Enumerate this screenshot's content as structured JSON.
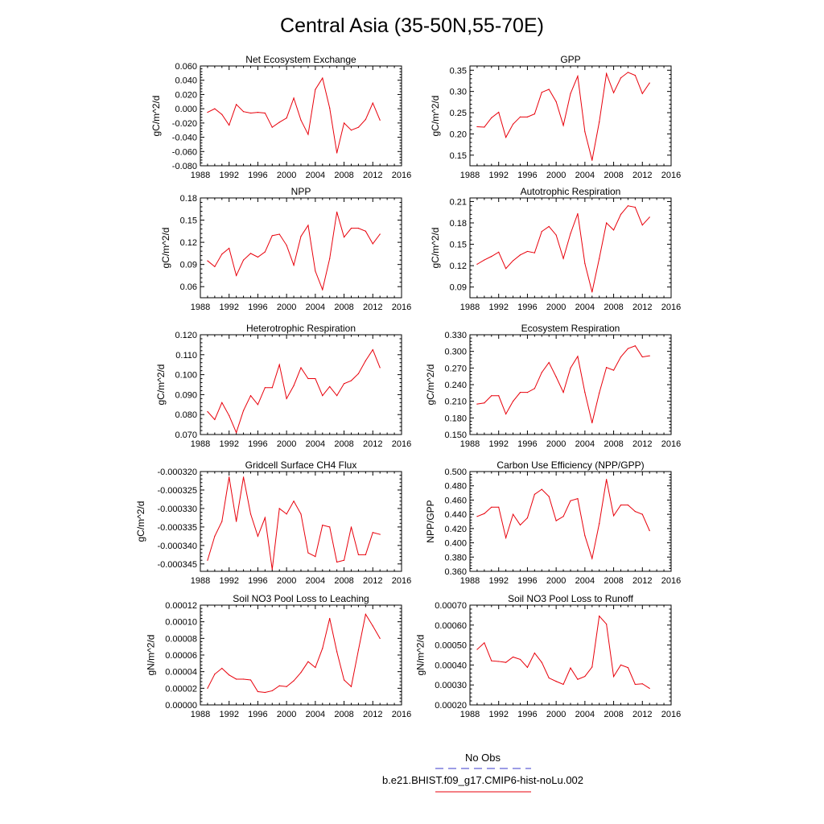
{
  "figure": {
    "title": "Central Asia (35-50N,55-70E)",
    "legend": {
      "obs_label": "No Obs",
      "obs_color": "#3a3acc",
      "model_label": "b.e21.BHIST.f09_g17.CMIP6-hist-noLu.002",
      "model_color": "#e8000b"
    },
    "line_color": "#e8000b"
  },
  "chart_data": [
    {
      "type": "line",
      "title": "Net Ecosystem Exchange",
      "ylabel": "gC/m^2/d",
      "xlim": [
        1988,
        2016
      ],
      "xticks": [
        1988,
        1992,
        1996,
        2000,
        2004,
        2008,
        2012,
        2016
      ],
      "ylim": [
        -0.08,
        0.06
      ],
      "yticks": [
        -0.08,
        -0.06,
        -0.04,
        -0.02,
        0.0,
        0.02,
        0.04,
        0.06
      ],
      "ytick_labels": [
        "-0.080",
        "-0.060",
        "-0.040",
        "-0.020",
        "0.000",
        "0.020",
        "0.040",
        "0.060"
      ],
      "x": [
        1989,
        1990,
        1991,
        1992,
        1993,
        1994,
        1995,
        1996,
        1997,
        1998,
        1999,
        2000,
        2001,
        2002,
        2003,
        2004,
        2005,
        2006,
        2007,
        2008,
        2009,
        2010,
        2011,
        2012,
        2013
      ],
      "values": [
        -0.005,
        0.0,
        -0.008,
        -0.023,
        0.006,
        -0.004,
        -0.006,
        -0.005,
        -0.006,
        -0.026,
        -0.019,
        -0.013,
        0.015,
        -0.016,
        -0.036,
        0.027,
        0.043,
        0.001,
        -0.062,
        -0.02,
        -0.03,
        -0.026,
        -0.015,
        0.008,
        -0.016
      ]
    },
    {
      "type": "line",
      "title": "GPP",
      "ylabel": "gC/m^2/d",
      "xlim": [
        1988,
        2016
      ],
      "xticks": [
        1988,
        1992,
        1996,
        2000,
        2004,
        2008,
        2012,
        2016
      ],
      "ylim": [
        0.125,
        0.36
      ],
      "yticks": [
        0.15,
        0.2,
        0.25,
        0.3,
        0.35
      ],
      "ytick_labels": [
        "0.15",
        "0.20",
        "0.25",
        "0.30",
        "0.35"
      ],
      "x": [
        1989,
        1990,
        1991,
        1992,
        1993,
        1994,
        1995,
        1996,
        1997,
        1998,
        1999,
        2000,
        2001,
        2002,
        2003,
        2004,
        2005,
        2006,
        2007,
        2008,
        2009,
        2010,
        2011,
        2012,
        2013
      ],
      "values": [
        0.217,
        0.216,
        0.238,
        0.251,
        0.192,
        0.223,
        0.24,
        0.24,
        0.247,
        0.298,
        0.305,
        0.276,
        0.22,
        0.295,
        0.336,
        0.205,
        0.138,
        0.228,
        0.342,
        0.297,
        0.332,
        0.345,
        0.338,
        0.295,
        0.32
      ]
    },
    {
      "type": "line",
      "title": "NPP",
      "ylabel": "gC/m^2/d",
      "xlim": [
        1988,
        2016
      ],
      "xticks": [
        1988,
        1992,
        1996,
        2000,
        2004,
        2008,
        2012,
        2016
      ],
      "ylim": [
        0.045,
        0.18
      ],
      "yticks": [
        0.06,
        0.09,
        0.12,
        0.15,
        0.18
      ],
      "ytick_labels": [
        "0.06",
        "0.09",
        "0.12",
        "0.15",
        "0.18"
      ],
      "x": [
        1989,
        1990,
        1991,
        1992,
        1993,
        1994,
        1995,
        1996,
        1997,
        1998,
        1999,
        2000,
        2001,
        2002,
        2003,
        2004,
        2005,
        2006,
        2007,
        2008,
        2009,
        2010,
        2011,
        2012,
        2013
      ],
      "values": [
        0.095,
        0.087,
        0.104,
        0.112,
        0.075,
        0.096,
        0.105,
        0.1,
        0.107,
        0.129,
        0.131,
        0.116,
        0.089,
        0.128,
        0.143,
        0.081,
        0.056,
        0.098,
        0.161,
        0.127,
        0.139,
        0.139,
        0.135,
        0.118,
        0.131
      ]
    },
    {
      "type": "line",
      "title": "Autotrophic Respiration",
      "ylabel": "gC/m^2/d",
      "xlim": [
        1988,
        2016
      ],
      "xticks": [
        1988,
        1992,
        1996,
        2000,
        2004,
        2008,
        2012,
        2016
      ],
      "ylim": [
        0.075,
        0.215
      ],
      "yticks": [
        0.09,
        0.12,
        0.15,
        0.18,
        0.21
      ],
      "ytick_labels": [
        "0.09",
        "0.12",
        "0.15",
        "0.18",
        "0.21"
      ],
      "x": [
        1989,
        1990,
        1991,
        1992,
        1993,
        1994,
        1995,
        1996,
        1997,
        1998,
        1999,
        2000,
        2001,
        2002,
        2003,
        2004,
        2005,
        2006,
        2007,
        2008,
        2009,
        2010,
        2011,
        2012,
        2013
      ],
      "values": [
        0.122,
        0.128,
        0.133,
        0.139,
        0.116,
        0.127,
        0.135,
        0.14,
        0.138,
        0.168,
        0.175,
        0.163,
        0.13,
        0.165,
        0.193,
        0.123,
        0.083,
        0.13,
        0.18,
        0.17,
        0.192,
        0.204,
        0.202,
        0.177,
        0.188
      ]
    },
    {
      "type": "line",
      "title": "Heterotrophic Respiration",
      "ylabel": "gC/m^2/d",
      "xlim": [
        1988,
        2016
      ],
      "xticks": [
        1988,
        1992,
        1996,
        2000,
        2004,
        2008,
        2012,
        2016
      ],
      "ylim": [
        0.07,
        0.12
      ],
      "yticks": [
        0.07,
        0.08,
        0.09,
        0.1,
        0.11,
        0.12
      ],
      "ytick_labels": [
        "0.070",
        "0.080",
        "0.090",
        "0.100",
        "0.110",
        "0.120"
      ],
      "x": [
        1989,
        1990,
        1991,
        1992,
        1993,
        1994,
        1995,
        1996,
        1997,
        1998,
        1999,
        2000,
        2001,
        2002,
        2003,
        2004,
        2005,
        2006,
        2007,
        2008,
        2009,
        2010,
        2011,
        2012,
        2013
      ],
      "values": [
        0.0815,
        0.0775,
        0.086,
        0.0795,
        0.071,
        0.082,
        0.0895,
        0.085,
        0.0935,
        0.0935,
        0.105,
        0.088,
        0.0945,
        0.1035,
        0.098,
        0.098,
        0.0895,
        0.094,
        0.0895,
        0.0955,
        0.097,
        0.1005,
        0.107,
        0.1125,
        0.1035
      ]
    },
    {
      "type": "line",
      "title": "Ecosystem Respiration",
      "ylabel": "gC/m^2/d",
      "xlim": [
        1988,
        2016
      ],
      "xticks": [
        1988,
        1992,
        1996,
        2000,
        2004,
        2008,
        2012,
        2016
      ],
      "ylim": [
        0.15,
        0.33
      ],
      "yticks": [
        0.15,
        0.18,
        0.21,
        0.24,
        0.27,
        0.3,
        0.33
      ],
      "ytick_labels": [
        "0.150",
        "0.180",
        "0.210",
        "0.240",
        "0.270",
        "0.300",
        "0.330"
      ],
      "x": [
        1989,
        1990,
        1991,
        1992,
        1993,
        1994,
        1995,
        1996,
        1997,
        1998,
        1999,
        2000,
        2001,
        2002,
        2003,
        2004,
        2005,
        2006,
        2007,
        2008,
        2009,
        2010,
        2011,
        2012,
        2013
      ],
      "values": [
        0.205,
        0.207,
        0.22,
        0.22,
        0.187,
        0.21,
        0.226,
        0.226,
        0.233,
        0.262,
        0.28,
        0.254,
        0.226,
        0.27,
        0.291,
        0.226,
        0.171,
        0.225,
        0.271,
        0.266,
        0.29,
        0.305,
        0.31,
        0.29,
        0.292
      ]
    },
    {
      "type": "line",
      "title": "Gridcell Surface CH4 Flux",
      "ylabel": "gC/m^2/d",
      "xlim": [
        1988,
        2016
      ],
      "xticks": [
        1988,
        1992,
        1996,
        2000,
        2004,
        2008,
        2012,
        2016
      ],
      "ylim": [
        -0.000347,
        -0.00032
      ],
      "yticks": [
        -0.000345,
        -0.00034,
        -0.000335,
        -0.00033,
        -0.000325,
        -0.00032
      ],
      "ytick_labels": [
        "-0.000345",
        "-0.000340",
        "-0.000335",
        "-0.000330",
        "-0.000325",
        "-0.000320"
      ],
      "x": [
        1989,
        1990,
        1991,
        1992,
        1993,
        1994,
        1995,
        1996,
        1997,
        1998,
        1999,
        2000,
        2001,
        2002,
        2003,
        2004,
        2005,
        2006,
        2007,
        2008,
        2009,
        2010,
        2011,
        2012,
        2013
      ],
      "values": [
        -0.000344,
        -0.0003375,
        -0.0003335,
        -0.0003215,
        -0.0003335,
        -0.0003215,
        -0.0003315,
        -0.0003375,
        -0.0003325,
        -0.0003465,
        -0.00033,
        -0.0003315,
        -0.000328,
        -0.0003315,
        -0.000342,
        -0.000343,
        -0.0003345,
        -0.000335,
        -0.0003445,
        -0.000344,
        -0.000335,
        -0.0003425,
        -0.0003425,
        -0.0003365,
        -0.000337
      ]
    },
    {
      "type": "line",
      "title": "Carbon Use Efficiency (NPP/GPP)",
      "ylabel": "NPP/GPP",
      "xlim": [
        1988,
        2016
      ],
      "xticks": [
        1988,
        1992,
        1996,
        2000,
        2004,
        2008,
        2012,
        2016
      ],
      "ylim": [
        0.36,
        0.5
      ],
      "yticks": [
        0.36,
        0.38,
        0.4,
        0.42,
        0.44,
        0.46,
        0.48,
        0.5
      ],
      "ytick_labels": [
        "0.360",
        "0.380",
        "0.400",
        "0.420",
        "0.440",
        "0.460",
        "0.480",
        "0.500"
      ],
      "x": [
        1989,
        1990,
        1991,
        1992,
        1993,
        1994,
        1995,
        1996,
        1997,
        1998,
        1999,
        2000,
        2001,
        2002,
        2003,
        2004,
        2005,
        2006,
        2007,
        2008,
        2009,
        2010,
        2011,
        2012,
        2013
      ],
      "values": [
        0.437,
        0.441,
        0.45,
        0.45,
        0.407,
        0.44,
        0.425,
        0.435,
        0.468,
        0.475,
        0.465,
        0.431,
        0.437,
        0.459,
        0.462,
        0.41,
        0.378,
        0.427,
        0.489,
        0.438,
        0.453,
        0.453,
        0.444,
        0.44,
        0.417
      ]
    },
    {
      "type": "line",
      "title": "Soil NO3 Pool Loss to Leaching",
      "ylabel": "gN/m^2/d",
      "xlim": [
        1988,
        2016
      ],
      "xticks": [
        1988,
        1992,
        1996,
        2000,
        2004,
        2008,
        2012,
        2016
      ],
      "ylim": [
        0.0,
        0.00012
      ],
      "yticks": [
        0.0,
        2e-05,
        4e-05,
        6e-05,
        8e-05,
        0.0001,
        0.00012
      ],
      "ytick_labels": [
        "0.00000",
        "0.00002",
        "0.00004",
        "0.00006",
        "0.00008",
        "0.00010",
        "0.00012"
      ],
      "x": [
        1989,
        1990,
        1991,
        1992,
        1993,
        1994,
        1995,
        1996,
        1997,
        1998,
        1999,
        2000,
        2001,
        2002,
        2003,
        2004,
        2005,
        2006,
        2007,
        2008,
        2009,
        2010,
        2011,
        2012,
        2013
      ],
      "values": [
        2e-05,
        3.7e-05,
        4.4e-05,
        3.6e-05,
        3.1e-05,
        3.1e-05,
        3e-05,
        1.6e-05,
        1.5e-05,
        1.7e-05,
        2.3e-05,
        2.2e-05,
        2.9e-05,
        3.9e-05,
        5.2e-05,
        4.5e-05,
        6.8e-05,
        0.000104,
        6.4e-05,
        3e-05,
        2.2e-05,
        6.6e-05,
        0.000109,
        9.5e-05,
        8e-05
      ]
    },
    {
      "type": "line",
      "title": "Soil NO3 Pool Loss to Runoff",
      "ylabel": "gN/m^2/d",
      "xlim": [
        1988,
        2016
      ],
      "xticks": [
        1988,
        1992,
        1996,
        2000,
        2004,
        2008,
        2012,
        2016
      ],
      "ylim": [
        0.0002,
        0.0007
      ],
      "yticks": [
        0.0002,
        0.0003,
        0.0004,
        0.0005,
        0.0006,
        0.0007
      ],
      "ytick_labels": [
        "0.00020",
        "0.00030",
        "0.00040",
        "0.00050",
        "0.00060",
        "0.00070"
      ],
      "x": [
        1989,
        1990,
        1991,
        1992,
        1993,
        1994,
        1995,
        1996,
        1997,
        1998,
        1999,
        2000,
        2001,
        2002,
        2003,
        2004,
        2005,
        2006,
        2007,
        2008,
        2009,
        2010,
        2011,
        2012,
        2013
      ],
      "values": [
        0.000478,
        0.000511,
        0.000421,
        0.000418,
        0.000413,
        0.00044,
        0.000428,
        0.000388,
        0.00046,
        0.000413,
        0.000335,
        0.000318,
        0.000303,
        0.000385,
        0.000328,
        0.000343,
        0.00039,
        0.000645,
        0.000605,
        0.000342,
        0.0004,
        0.000387,
        0.000303,
        0.000306,
        0.000283
      ]
    }
  ]
}
